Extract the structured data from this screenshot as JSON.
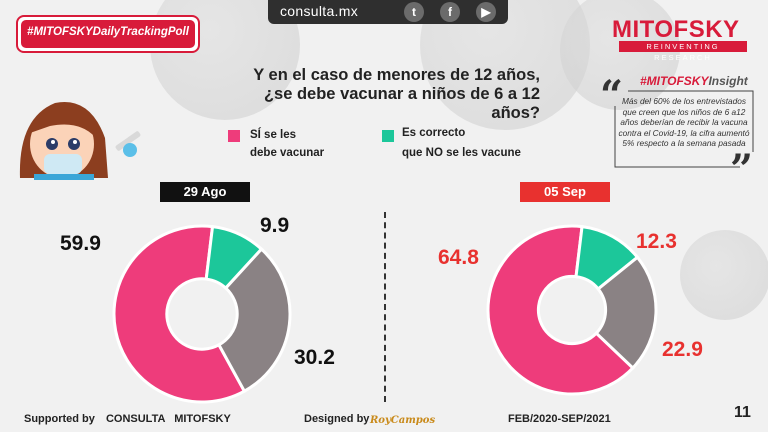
{
  "topbar": {
    "url": "consulta.mx",
    "icons": [
      "twitter-icon",
      "facebook-icon",
      "youtube-icon"
    ]
  },
  "hashtag": "#MITOFSKYDailyTrackingPoll",
  "logo": {
    "name": "MITOFSKY",
    "tagline": "REINVENTING RESEARCH"
  },
  "question": {
    "line1": "Y en el caso de menores de 12 años,",
    "line2": "¿se debe vacunar a niños de 6 a 12 años?"
  },
  "legend": [
    {
      "line1": "SÍ se les",
      "line2": "debe vacunar",
      "color": "#ee3c7b"
    },
    {
      "line1": "Es correcto",
      "line2": "que NO se les vacune",
      "color": "#1cc79a"
    }
  ],
  "insight": {
    "title_prefix": "#MITOFSKY",
    "title_suffix": "Insight",
    "text": "Más del 60% de los entrevistados que creen que los niños de 6 a12 años deberían de recibir la vacuna contra el Covid-19, la cifra aumentó 5% respecto a la semana pasada"
  },
  "chart_data": [
    {
      "type": "pie",
      "title": "29 Ago",
      "categories": [
        "SÍ se les debe vacunar",
        "Es correcto que NO se les vacune",
        ""
      ],
      "values": [
        59.9,
        9.9,
        30.2
      ],
      "colors": [
        "#ee3c7b",
        "#1cc79a",
        "#8a8284"
      ],
      "label_color": "#111111"
    },
    {
      "type": "pie",
      "title": "05 Sep",
      "categories": [
        "SÍ se les debe vacunar",
        "Es correcto que NO se les vacune",
        ""
      ],
      "values": [
        64.8,
        12.3,
        22.9
      ],
      "colors": [
        "#ee3c7b",
        "#1cc79a",
        "#8a8284"
      ],
      "label_color": "#e8312f"
    }
  ],
  "footer": {
    "supported": "Supported by",
    "org": "CONSULTA   MITOFSKY",
    "designed": "Designed by",
    "signature": "RoyCampos",
    "period": "FEB/2020-SEP/2021",
    "page": "11"
  }
}
